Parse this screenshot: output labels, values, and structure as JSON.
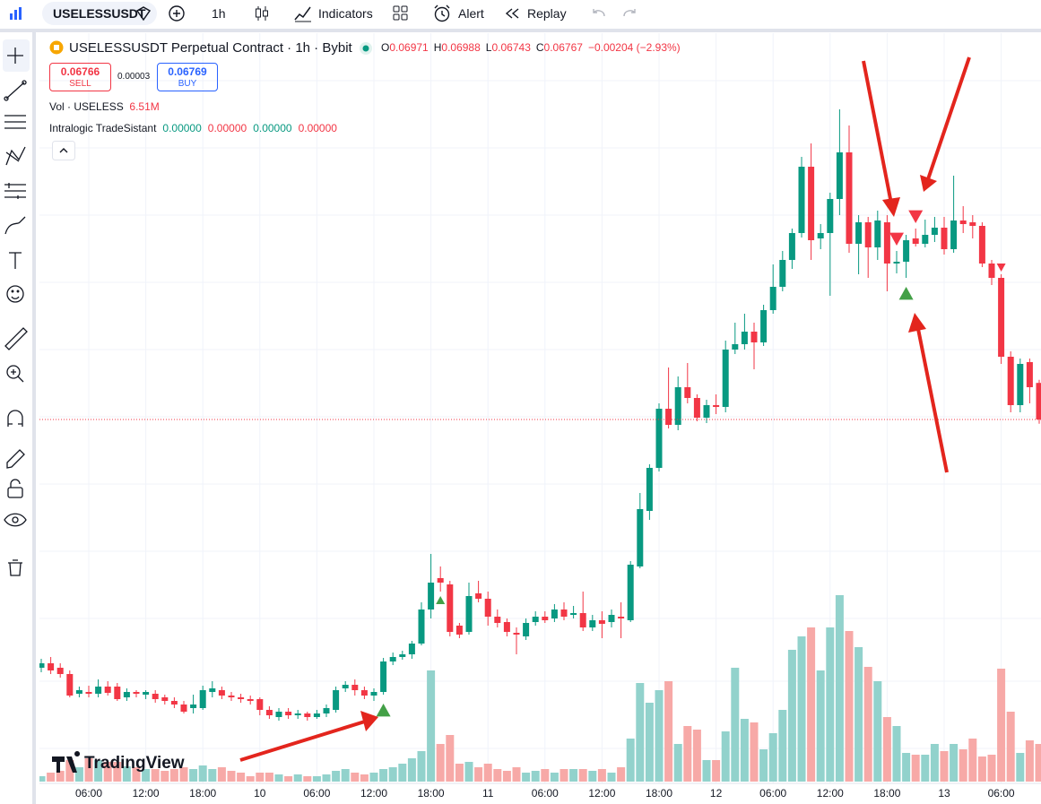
{
  "toolbar": {
    "symbol": "USELESSUSDT",
    "interval": "1h",
    "indicators": "Indicators",
    "alert": "Alert",
    "replay": "Replay"
  },
  "chart_data": {
    "type": "candlestick",
    "title": "USELESSUSDT Perpetual Contract · 1h · Bybit",
    "legend": {
      "ohlc": [
        {
          "key": "O",
          "value": "0.06971"
        },
        {
          "key": "H",
          "value": "0.06988"
        },
        {
          "key": "L",
          "value": "0.06743"
        },
        {
          "key": "C",
          "value": "0.06767"
        }
      ],
      "change": "−0.00204 (−2.93%)",
      "sell": {
        "price": "0.06766",
        "label": "SELL"
      },
      "spread": "0.00003",
      "buy": {
        "price": "0.06769",
        "label": "BUY"
      },
      "volume_name": "Vol · USELESS",
      "volume_value": "6.51M",
      "indicator_name": "Intralogic TradeSistant",
      "indicator_values": [
        "0.00000",
        "0.00000",
        "0.00000",
        "0.00000"
      ]
    },
    "watermark": "TradingView",
    "up_color": "#089981",
    "down_color": "#f23645",
    "volume_up_color": "#92d2cc",
    "volume_down_color": "#f7a9a7",
    "candles": [
      [
        0.05382,
        0.05432,
        0.05357,
        0.05407
      ],
      [
        0.05407,
        0.05442,
        0.05347,
        0.05367
      ],
      [
        0.05382,
        0.05407,
        0.05327,
        0.05347
      ],
      [
        0.05347,
        0.05367,
        0.05217,
        0.05227
      ],
      [
        0.05237,
        0.05277,
        0.05217,
        0.05257
      ],
      [
        0.05247,
        0.05282,
        0.05217,
        0.05237
      ],
      [
        0.05237,
        0.05317,
        0.05217,
        0.05277
      ],
      [
        0.05277,
        0.05307,
        0.05227,
        0.05242
      ],
      [
        0.05277,
        0.05297,
        0.05197,
        0.05207
      ],
      [
        0.05217,
        0.05267,
        0.05197,
        0.05247
      ],
      [
        0.05247,
        0.05257,
        0.05217,
        0.05237
      ],
      [
        0.05232,
        0.05257,
        0.05207,
        0.05247
      ],
      [
        0.05237,
        0.05257,
        0.05187,
        0.05207
      ],
      [
        0.05217,
        0.05232,
        0.05177,
        0.05197
      ],
      [
        0.05197,
        0.05217,
        0.05157,
        0.05177
      ],
      [
        0.05177,
        0.05197,
        0.05127,
        0.05137
      ],
      [
        0.05157,
        0.05232,
        0.05127,
        0.05177
      ],
      [
        0.05157,
        0.05282,
        0.05147,
        0.05257
      ],
      [
        0.05247,
        0.05307,
        0.05217,
        0.05267
      ],
      [
        0.05257,
        0.05277,
        0.05207,
        0.05227
      ],
      [
        0.05227,
        0.05247,
        0.05197,
        0.05217
      ],
      [
        0.05217,
        0.05237,
        0.05187,
        0.05207
      ],
      [
        0.05207,
        0.05227,
        0.05177,
        0.05197
      ],
      [
        0.05207,
        0.05217,
        0.05117,
        0.05147
      ],
      [
        0.05147,
        0.05167,
        0.05097,
        0.05117
      ],
      [
        0.05107,
        0.05157,
        0.05087,
        0.05137
      ],
      [
        0.05137,
        0.05157,
        0.05097,
        0.05117
      ],
      [
        0.05117,
        0.05147,
        0.05097,
        0.05127
      ],
      [
        0.05127,
        0.05137,
        0.05087,
        0.05107
      ],
      [
        0.05107,
        0.05147,
        0.05097,
        0.05127
      ],
      [
        0.05127,
        0.05177,
        0.05107,
        0.05157
      ],
      [
        0.05147,
        0.05277,
        0.05132,
        0.05257
      ],
      [
        0.05267,
        0.05307,
        0.05247,
        0.05287
      ],
      [
        0.05287,
        0.05317,
        0.05227,
        0.05257
      ],
      [
        0.05257,
        0.05277,
        0.05207,
        0.05227
      ],
      [
        0.05227,
        0.05267,
        0.05197,
        0.05247
      ],
      [
        0.05247,
        0.05437,
        0.05232,
        0.05417
      ],
      [
        0.05417,
        0.05467,
        0.05397,
        0.05442
      ],
      [
        0.05442,
        0.05477,
        0.05427,
        0.05457
      ],
      [
        0.05457,
        0.05532,
        0.05432,
        0.05517
      ],
      [
        0.05517,
        0.05747,
        0.05507,
        0.05707
      ],
      [
        0.05707,
        0.06017,
        0.05657,
        0.05857
      ],
      [
        0.05882,
        0.05947,
        0.05807,
        0.05857
      ],
      [
        0.05847,
        0.05867,
        0.05557,
        0.05582
      ],
      [
        0.05617,
        0.05632,
        0.05547,
        0.05567
      ],
      [
        0.05582,
        0.05857,
        0.05567,
        0.05782
      ],
      [
        0.05797,
        0.05867,
        0.05747,
        0.05767
      ],
      [
        0.05767,
        0.05807,
        0.05617,
        0.05667
      ],
      [
        0.05667,
        0.05707,
        0.05607,
        0.05632
      ],
      [
        0.05637,
        0.05657,
        0.05557,
        0.05582
      ],
      [
        0.05577,
        0.05607,
        0.05457,
        0.05567
      ],
      [
        0.05557,
        0.05657,
        0.05537,
        0.05632
      ],
      [
        0.05637,
        0.05697,
        0.05617,
        0.05667
      ],
      [
        0.05667,
        0.05697,
        0.05632,
        0.05647
      ],
      [
        0.05657,
        0.05737,
        0.05637,
        0.05707
      ],
      [
        0.05707,
        0.05747,
        0.05647,
        0.05667
      ],
      [
        0.05677,
        0.05727,
        0.05657,
        0.05687
      ],
      [
        0.05687,
        0.05807,
        0.05587,
        0.05607
      ],
      [
        0.05607,
        0.05677,
        0.05587,
        0.05647
      ],
      [
        0.05647,
        0.05697,
        0.05547,
        0.05627
      ],
      [
        0.05637,
        0.05707,
        0.05607,
        0.05677
      ],
      [
        0.05667,
        0.05747,
        0.05547,
        0.05657
      ],
      [
        0.05647,
        0.05977,
        0.05637,
        0.05957
      ],
      [
        0.05947,
        0.06357,
        0.05937,
        0.06267
      ],
      [
        0.06257,
        0.06517,
        0.06207,
        0.06497
      ],
      [
        0.06497,
        0.06857,
        0.06477,
        0.06827
      ],
      [
        0.06827,
        0.07057,
        0.06717,
        0.06737
      ],
      [
        0.06737,
        0.07007,
        0.06707,
        0.06947
      ],
      [
        0.06947,
        0.07082,
        0.06857,
        0.06887
      ],
      [
        0.06887,
        0.06907,
        0.06757,
        0.06777
      ],
      [
        0.06777,
        0.06877,
        0.06747,
        0.06847
      ],
      [
        0.06847,
        0.06907,
        0.06797,
        0.06837
      ],
      [
        0.06837,
        0.07207,
        0.06807,
        0.07157
      ],
      [
        0.07157,
        0.07307,
        0.07132,
        0.07187
      ],
      [
        0.07187,
        0.07357,
        0.07157,
        0.07257
      ],
      [
        0.07257,
        0.07307,
        0.07047,
        0.07197
      ],
      [
        0.07197,
        0.07407,
        0.07177,
        0.07377
      ],
      [
        0.07377,
        0.07632,
        0.07357,
        0.07507
      ],
      [
        0.07507,
        0.07707,
        0.07482,
        0.07657
      ],
      [
        0.07657,
        0.07832,
        0.07607,
        0.07807
      ],
      [
        0.07807,
        0.08232,
        0.07782,
        0.08177
      ],
      [
        0.08177,
        0.08307,
        0.07657,
        0.07767
      ],
      [
        0.07777,
        0.07857,
        0.07717,
        0.07807
      ],
      [
        0.07807,
        0.08032,
        0.07457,
        0.07997
      ],
      [
        0.07997,
        0.08497,
        0.07907,
        0.08257
      ],
      [
        0.08257,
        0.08407,
        0.07697,
        0.07747
      ],
      [
        0.07747,
        0.07907,
        0.07577,
        0.07867
      ],
      [
        0.07867,
        0.07897,
        0.07557,
        0.07727
      ],
      [
        0.07727,
        0.07932,
        0.07657,
        0.07877
      ],
      [
        0.07867,
        0.07907,
        0.07482,
        0.07637
      ],
      [
        0.07637,
        0.07707,
        0.07582,
        0.07647
      ],
      [
        0.07647,
        0.07797,
        0.07557,
        0.07767
      ],
      [
        0.07777,
        0.07832,
        0.07732,
        0.07747
      ],
      [
        0.07747,
        0.07882,
        0.07727,
        0.07797
      ],
      [
        0.07797,
        0.07897,
        0.07757,
        0.07837
      ],
      [
        0.07837,
        0.07897,
        0.07687,
        0.07717
      ],
      [
        0.07717,
        0.08127,
        0.07697,
        0.07877
      ],
      [
        0.07877,
        0.07957,
        0.07807,
        0.07857
      ],
      [
        0.07867,
        0.07907,
        0.07777,
        0.07847
      ],
      [
        0.07847,
        0.07867,
        0.07617,
        0.07637
      ],
      [
        0.07637,
        0.07657,
        0.07517,
        0.07557
      ],
      [
        0.07557,
        0.07577,
        0.07077,
        0.07117
      ],
      [
        0.07117,
        0.07147,
        0.06807,
        0.06847
      ],
      [
        0.06847,
        0.07107,
        0.06807,
        0.07077
      ],
      [
        0.07087,
        0.07107,
        0.06857,
        0.06947
      ],
      [
        0.06971,
        0.06988,
        0.06743,
        0.06767
      ]
    ],
    "volumes": [
      930000,
      1550000,
      1860000,
      3720000,
      2480000,
      4030000,
      3720000,
      3410000,
      3410000,
      2640000,
      2480000,
      2170000,
      2170000,
      1860000,
      2170000,
      2480000,
      2170000,
      2790000,
      2170000,
      2480000,
      1860000,
      1550000,
      930000,
      1550000,
      1550000,
      1240000,
      930000,
      1240000,
      930000,
      930000,
      1240000,
      1860000,
      2170000,
      1550000,
      1240000,
      1550000,
      2170000,
      2480000,
      3100000,
      4030000,
      5270000,
      19220000,
      6510000,
      8060000,
      3100000,
      3410000,
      2480000,
      3100000,
      2170000,
      1860000,
      2480000,
      1550000,
      1860000,
      2170000,
      1550000,
      2170000,
      2170000,
      2170000,
      1860000,
      2170000,
      1550000,
      2480000,
      7440000,
      17050000,
      13640000,
      15810000,
      17360000,
      6510000,
      9610000,
      8990000,
      3720000,
      3720000,
      8680000,
      19690000,
      10850000,
      10230000,
      5580000,
      8370000,
      12400000,
      22790000,
      25110000,
      26660000,
      19220000,
      26660000,
      32240000,
      26040000,
      23250000,
      19840000,
      17360000,
      11160000,
      9610000,
      4960000,
      4650000,
      4650000,
      6510000,
      5270000,
      6510000,
      5580000,
      7440000,
      4340000,
      4650000,
      19530000,
      12090000,
      4960000,
      7130000,
      6510000
    ],
    "xticks": [
      {
        "value": 5,
        "label": "06:00"
      },
      {
        "value": 11,
        "label": "12:00"
      },
      {
        "value": 17,
        "label": "18:00"
      },
      {
        "value": 23,
        "label": "10"
      },
      {
        "value": 29,
        "label": "06:00"
      },
      {
        "value": 35,
        "label": "12:00"
      },
      {
        "value": 41,
        "label": "18:00"
      },
      {
        "value": 47,
        "label": "11"
      },
      {
        "value": 53,
        "label": "06:00"
      },
      {
        "value": 59,
        "label": "12:00"
      },
      {
        "value": 65,
        "label": "18:00"
      },
      {
        "value": 71,
        "label": "12"
      },
      {
        "value": 77,
        "label": "06:00"
      },
      {
        "value": 83,
        "label": "12:00"
      },
      {
        "value": 89,
        "label": "18:00"
      },
      {
        "value": 95,
        "label": "13"
      },
      {
        "value": 101,
        "label": "06:00"
      }
    ],
    "buy_signals": [
      {
        "index": 36,
        "size": "large"
      },
      {
        "index": 42,
        "size": "small"
      },
      {
        "index": 91,
        "size": "large"
      }
    ],
    "sell_signals": [
      {
        "index": 90,
        "size": "large"
      },
      {
        "index": 92,
        "size": "large"
      },
      {
        "index": 101,
        "size": "small"
      }
    ],
    "grid": true
  }
}
